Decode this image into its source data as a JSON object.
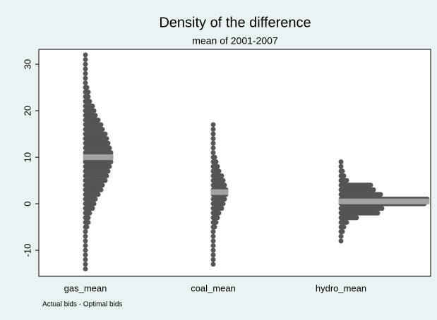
{
  "chart_data": {
    "type": "dotplot",
    "title": "Density of the difference",
    "subtitle": "mean of 2001-2007",
    "note": "Actual bids - Optimal  bids",
    "categories": [
      "gas_mean",
      "coal_mean",
      "hydro_mean"
    ],
    "color": "#555555",
    "center_color": "#a3a3a3",
    "groups": [
      {
        "bins": [
          -14,
          -13,
          -12,
          -11,
          -10,
          -9,
          -8,
          -7,
          -6,
          -5,
          -4,
          -3,
          -2,
          -1,
          0,
          1,
          2,
          3,
          4,
          5,
          6,
          7,
          8,
          9,
          10,
          11,
          12,
          13,
          14,
          15,
          16,
          17,
          18,
          19,
          20,
          21,
          22,
          23,
          24,
          25,
          26,
          27,
          28,
          29,
          30,
          31,
          32
        ],
        "counts": [
          1,
          1,
          1,
          1,
          1,
          1,
          1,
          1,
          1,
          2,
          3,
          3,
          4,
          6,
          7,
          8,
          10,
          12,
          13,
          15,
          16,
          17,
          18,
          19,
          19,
          19,
          18,
          17,
          16,
          15,
          13,
          12,
          10,
          8,
          7,
          6,
          4,
          3,
          3,
          2,
          1,
          1,
          1,
          1,
          1,
          1,
          1
        ],
        "center": 10
      },
      {
        "bins": [
          -13,
          -12,
          -11,
          -10,
          -9,
          -8,
          -7,
          -6,
          -5,
          -4,
          -3,
          -2,
          -1,
          0,
          1,
          2,
          3,
          4,
          5,
          6,
          7,
          8,
          9,
          10,
          11,
          12,
          13,
          14,
          15,
          16,
          17
        ],
        "counts": [
          1,
          1,
          1,
          1,
          1,
          1,
          1,
          1,
          2,
          3,
          4,
          5,
          7,
          8,
          9,
          10,
          10,
          9,
          8,
          7,
          5,
          4,
          3,
          2,
          1,
          1,
          1,
          1,
          1,
          1,
          1
        ],
        "center": 2.5
      },
      {
        "bins": [
          -8,
          -7,
          -6,
          -5,
          -4,
          -3,
          -2,
          -1,
          0,
          1,
          2,
          3,
          4,
          5,
          6,
          7,
          8,
          9
        ],
        "counts": [
          1,
          1,
          2,
          3,
          5,
          12,
          27,
          30,
          60,
          62,
          29,
          24,
          22,
          5,
          3,
          2,
          1,
          1
        ],
        "center": 0.5
      }
    ],
    "ylim": [
      -15.6,
      33.2
    ],
    "yticks": [
      -10,
      0,
      10,
      20,
      30
    ]
  }
}
